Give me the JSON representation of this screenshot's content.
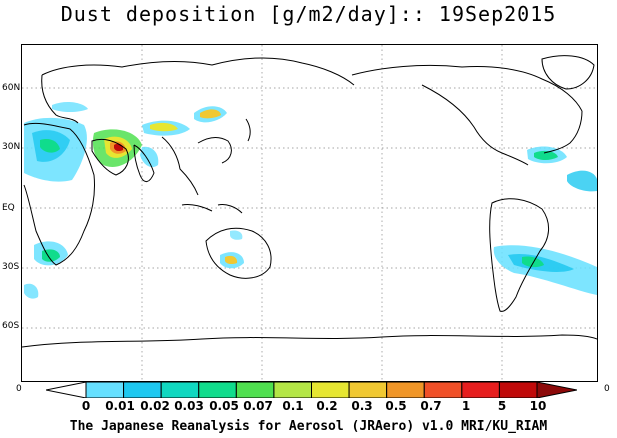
{
  "title": "Dust deposition [g/m2/day]:: 19Sep2015",
  "lat_labels": [
    "60N",
    "30N",
    "EQ",
    "30S",
    "60S"
  ],
  "edge_labels": {
    "left": "0",
    "right": "0"
  },
  "colorbar": {
    "tick_labels": [
      "0",
      "0.01",
      "0.02",
      "0.03",
      "0.05",
      "0.07",
      "0.1",
      "0.2",
      "0.3",
      "0.5",
      "0.7",
      "1",
      "5",
      "10"
    ],
    "colors": [
      "#ffffff",
      "#66e0ff",
      "#1ec8f0",
      "#10d8c0",
      "#10dc8c",
      "#50e050",
      "#b4e646",
      "#e6e632",
      "#f0c832",
      "#f09628",
      "#f05028",
      "#e61e1e",
      "#c00a0a",
      "#8c0a0a"
    ]
  },
  "credit": "The Japanese Reanalysis for Aerosol (JRAero) v1.0 MRI/KU_RIAM"
}
